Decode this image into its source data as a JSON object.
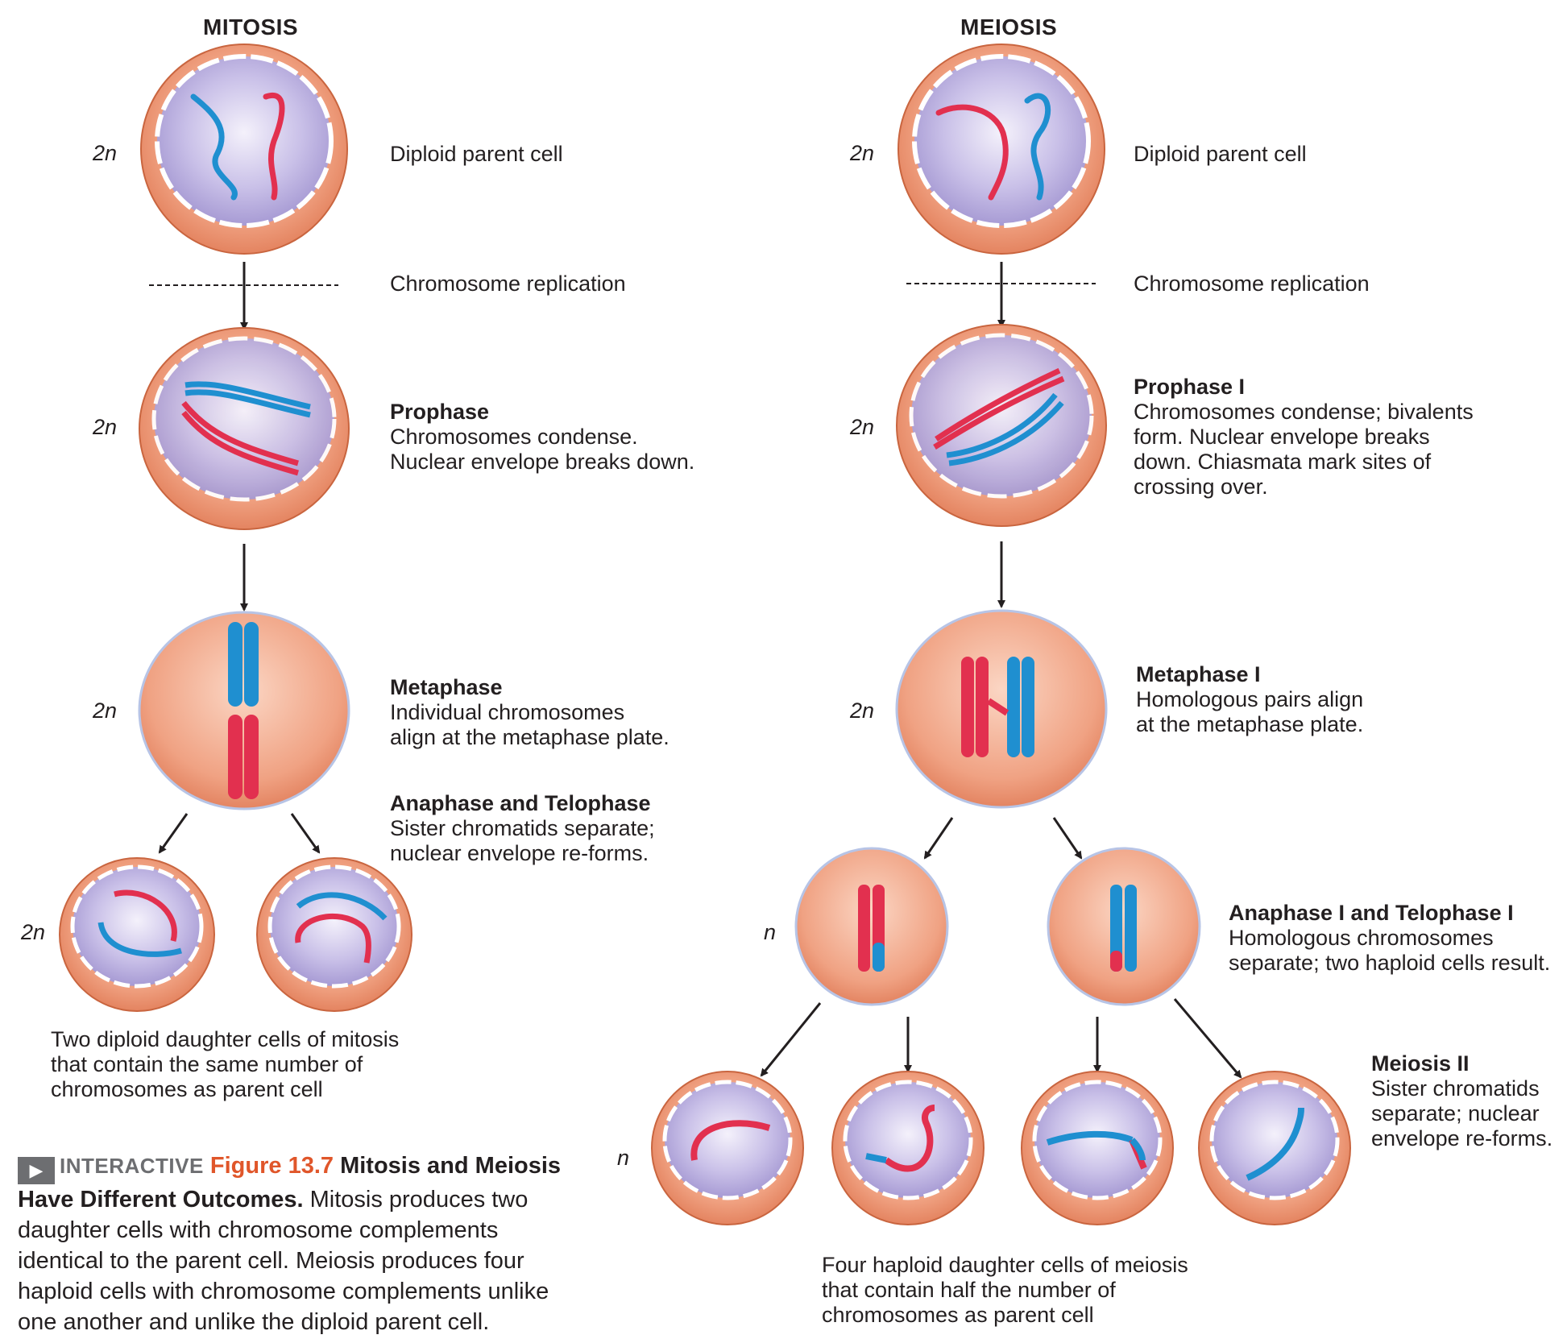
{
  "mitosis": {
    "title": "MITOSIS",
    "ploidy": [
      "2n",
      "2n",
      "2n",
      "2n"
    ],
    "replication_label": "Chromosome replication",
    "stages": [
      {
        "label": "Diploid parent cell"
      },
      {
        "title": "Prophase",
        "lines": [
          "Chromosomes condense.",
          "Nuclear envelope breaks down."
        ]
      },
      {
        "title": "Metaphase",
        "lines": [
          "Individual chromosomes",
          "align at the metaphase plate."
        ]
      },
      {
        "title": "Anaphase and Telophase",
        "lines": [
          "Sister chromatids separate;",
          "nuclear envelope re-forms."
        ]
      }
    ],
    "outcome_lines": [
      "Two diploid daughter cells of mitosis",
      "that contain the same number of",
      "chromosomes as parent cell"
    ]
  },
  "meiosis": {
    "title": "MEIOSIS",
    "ploidy": [
      "2n",
      "2n",
      "2n",
      "n",
      "n"
    ],
    "replication_label": "Chromosome replication",
    "stages": [
      {
        "label": "Diploid parent cell"
      },
      {
        "title": "Prophase I",
        "lines": [
          "Chromosomes condense; bivalents",
          "form. Nuclear envelope breaks",
          "down. Chiasmata mark sites of",
          "crossing over."
        ]
      },
      {
        "title": "Metaphase I",
        "lines": [
          "Homologous pairs align",
          "at the metaphase plate."
        ]
      },
      {
        "title": "Anaphase I and Telophase I",
        "lines": [
          "Homologous chromosomes",
          "separate; two haploid cells result."
        ]
      },
      {
        "title": "Meiosis II",
        "lines": [
          "Sister chromatids",
          "separate; nuclear",
          "envelope re-forms."
        ]
      }
    ],
    "outcome_lines": [
      "Four haploid daughter cells of meiosis",
      "that contain half the number of",
      "chromosomes as parent cell"
    ]
  },
  "caption": {
    "badge": "INTERACTIVE",
    "figure_number": "Figure 13.7",
    "title": "Mitosis and Meiosis Have Different Outcomes.",
    "body": "Mitosis produces two daughter cells with chromosome complements identical to the parent cell. Meiosis produces four haploid cells with chromosome complements unlike one another and unlike the diploid parent cell."
  },
  "colors": {
    "cell_outer": "#e98a62",
    "cell_inner": "#f3b49a",
    "nucleus": "#b7aedd",
    "red_chromosome": "#e2304f",
    "blue_chromosome": "#1f8fd0",
    "caption_accent": "#e0562a"
  }
}
